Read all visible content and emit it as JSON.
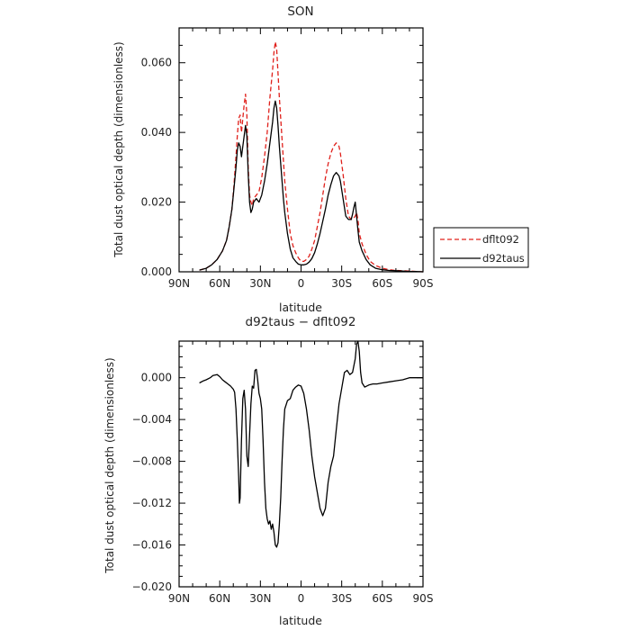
{
  "chart_data": [
    {
      "type": "line",
      "title": "SON",
      "xlabel": "latitude",
      "ylabel": "Total dust optical depth (dimensionless)",
      "xlim": [
        90,
        -90
      ],
      "ylim": [
        0,
        0.07
      ],
      "x_ticks": [
        90,
        60,
        30,
        0,
        -30,
        -60,
        -90
      ],
      "x_tick_labels": [
        "90N",
        "60N",
        "30N",
        "0",
        "30S",
        "60S",
        "90S"
      ],
      "y_ticks": [
        0,
        0.02,
        0.04,
        0.06
      ],
      "y_tick_labels": [
        "0.000",
        "0.020",
        "0.040",
        "0.060"
      ],
      "grid": false,
      "legend_position": "right",
      "series": [
        {
          "name": "dflt092",
          "color": "#e0201b",
          "dash": "dashed",
          "x": [
            75,
            70,
            66,
            62,
            58,
            55,
            53,
            51,
            49.5,
            48,
            47,
            46,
            45,
            44,
            43,
            42,
            41,
            40,
            39,
            38,
            37,
            36,
            35,
            33,
            31,
            29,
            27,
            25,
            23,
            21,
            20,
            19,
            18,
            17,
            16,
            15,
            14,
            13,
            12,
            10,
            8,
            6,
            4,
            2,
            0,
            -2,
            -4,
            -6,
            -8,
            -10,
            -12,
            -14,
            -16,
            -18,
            -20,
            -22,
            -24,
            -26,
            -28,
            -29,
            -31,
            -33,
            -35,
            -37,
            -38,
            -39,
            -40,
            -41,
            -42,
            -43,
            -45,
            -48,
            -51,
            -55,
            -60,
            -65,
            -70,
            -75,
            -80,
            -85,
            -90
          ],
          "y": [
            0.0005,
            0.001,
            0.002,
            0.0035,
            0.006,
            0.009,
            0.013,
            0.018,
            0.025,
            0.033,
            0.039,
            0.044,
            0.045,
            0.04,
            0.044,
            0.048,
            0.051,
            0.045,
            0.03,
            0.022,
            0.02,
            0.019,
            0.021,
            0.022,
            0.023,
            0.027,
            0.033,
            0.04,
            0.05,
            0.058,
            0.063,
            0.066,
            0.064,
            0.057,
            0.05,
            0.044,
            0.038,
            0.032,
            0.026,
            0.018,
            0.011,
            0.0075,
            0.0055,
            0.004,
            0.003,
            0.003,
            0.0035,
            0.0045,
            0.0065,
            0.009,
            0.013,
            0.017,
            0.022,
            0.027,
            0.031,
            0.034,
            0.036,
            0.037,
            0.036,
            0.034,
            0.028,
            0.021,
            0.016,
            0.015,
            0.015,
            0.0155,
            0.016,
            0.017,
            0.015,
            0.011,
            0.008,
            0.005,
            0.003,
            0.0018,
            0.001,
            0.0006,
            0.0004,
            0.0003,
            0.0002,
            0.0001,
            0.0
          ]
        },
        {
          "name": "d92taus",
          "color": "#000000",
          "dash": "solid",
          "x": [
            75,
            70,
            66,
            62,
            58,
            55,
            53,
            51,
            49.5,
            48,
            47,
            46,
            45,
            44,
            43,
            42,
            41,
            40,
            39,
            38,
            37,
            36,
            35,
            33,
            31,
            29,
            27,
            25,
            23,
            21,
            20,
            19,
            18,
            17,
            16,
            15,
            14,
            13,
            12,
            10,
            8,
            6,
            4,
            2,
            0,
            -2,
            -4,
            -6,
            -8,
            -10,
            -12,
            -14,
            -16,
            -18,
            -20,
            -22,
            -24,
            -26,
            -28,
            -29,
            -31,
            -33,
            -35,
            -37,
            -38,
            -39,
            -40,
            -41,
            -42,
            -43,
            -45,
            -48,
            -51,
            -55,
            -60,
            -65,
            -70,
            -75,
            -80,
            -85,
            -90
          ],
          "y": [
            0.0005,
            0.001,
            0.002,
            0.0035,
            0.006,
            0.009,
            0.013,
            0.018,
            0.024,
            0.03,
            0.035,
            0.037,
            0.036,
            0.033,
            0.036,
            0.039,
            0.042,
            0.039,
            0.028,
            0.02,
            0.017,
            0.018,
            0.02,
            0.021,
            0.02,
            0.022,
            0.026,
            0.031,
            0.037,
            0.043,
            0.047,
            0.049,
            0.047,
            0.042,
            0.036,
            0.031,
            0.026,
            0.021,
            0.017,
            0.011,
            0.0065,
            0.004,
            0.003,
            0.0022,
            0.002,
            0.002,
            0.0022,
            0.0028,
            0.0038,
            0.0055,
            0.008,
            0.011,
            0.0145,
            0.018,
            0.022,
            0.025,
            0.0275,
            0.0285,
            0.0275,
            0.026,
            0.021,
            0.016,
            0.015,
            0.015,
            0.0165,
            0.0185,
            0.02,
            0.016,
            0.012,
            0.0085,
            0.006,
            0.0035,
            0.002,
            0.001,
            0.0006,
            0.0004,
            0.0003,
            0.0002,
            0.0001,
            0.0001,
            0.0
          ]
        }
      ]
    },
    {
      "type": "line",
      "title": "d92taus − dflt092",
      "xlabel": "latitude",
      "ylabel": "Total dust optical depth (dimensionless)",
      "xlim": [
        90,
        -90
      ],
      "ylim": [
        -0.02,
        0.0035
      ],
      "x_ticks": [
        90,
        60,
        30,
        0,
        -30,
        -60,
        -90
      ],
      "x_tick_labels": [
        "90N",
        "60N",
        "30N",
        "0",
        "30S",
        "60S",
        "90S"
      ],
      "y_ticks": [
        0,
        -0.004,
        -0.008,
        -0.012,
        -0.016,
        -0.02
      ],
      "y_tick_labels": [
        "0.000",
        "−0.004",
        "−0.008",
        "−0.012",
        "−0.016",
        "−0.020"
      ],
      "grid": false,
      "series": [
        {
          "color": "#000000",
          "dash": "solid",
          "x": [
            75,
            72,
            70,
            67,
            65,
            62,
            60,
            58,
            56,
            54,
            52,
            50,
            49,
            48,
            47,
            46,
            45.5,
            45,
            44,
            43,
            42,
            41,
            40,
            39,
            38,
            37,
            36,
            35,
            34,
            33,
            32,
            31,
            30,
            29,
            28,
            27,
            26,
            25,
            24,
            23,
            22,
            21,
            20,
            19,
            18,
            17,
            16,
            15,
            14,
            13,
            12,
            10,
            8,
            6,
            4,
            2,
            0,
            -2,
            -4,
            -6,
            -8,
            -10,
            -12,
            -14,
            -16,
            -18,
            -20,
            -22,
            -24,
            -26,
            -28,
            -30,
            -32,
            -34,
            -36,
            -38,
            -40,
            -41,
            -42,
            -43,
            -44,
            -45,
            -47,
            -50,
            -53,
            -56,
            -60,
            -65,
            -70,
            -75,
            -80,
            -85,
            -90
          ],
          "y": [
            -0.0005,
            -0.0003,
            -0.0002,
            0.0,
            0.0002,
            0.0003,
            0.0001,
            -0.0002,
            -0.0004,
            -0.0006,
            -0.0008,
            -0.0011,
            -0.0014,
            -0.003,
            -0.006,
            -0.0095,
            -0.012,
            -0.0115,
            -0.006,
            -0.002,
            -0.0012,
            -0.003,
            -0.0075,
            -0.0085,
            -0.0055,
            -0.0025,
            -0.0008,
            -0.001,
            0.0007,
            0.0008,
            -0.0002,
            -0.0015,
            -0.002,
            -0.003,
            -0.006,
            -0.01,
            -0.0125,
            -0.0135,
            -0.014,
            -0.0137,
            -0.0145,
            -0.014,
            -0.0148,
            -0.016,
            -0.0162,
            -0.0158,
            -0.014,
            -0.0115,
            -0.008,
            -0.005,
            -0.003,
            -0.0022,
            -0.002,
            -0.0012,
            -0.0009,
            -0.0007,
            -0.0008,
            -0.0015,
            -0.003,
            -0.005,
            -0.0075,
            -0.0095,
            -0.011,
            -0.0125,
            -0.0132,
            -0.0125,
            -0.01,
            -0.0085,
            -0.0075,
            -0.005,
            -0.0025,
            -0.001,
            0.0005,
            0.0007,
            0.0003,
            0.0005,
            0.0018,
            0.0032,
            0.0035,
            0.0025,
            0.0005,
            -0.0005,
            -0.0009,
            -0.0007,
            -0.0006,
            -0.0006,
            -0.0005,
            -0.0004,
            -0.0003,
            -0.0002,
            0.0,
            0.0,
            0.0
          ]
        }
      ]
    }
  ]
}
